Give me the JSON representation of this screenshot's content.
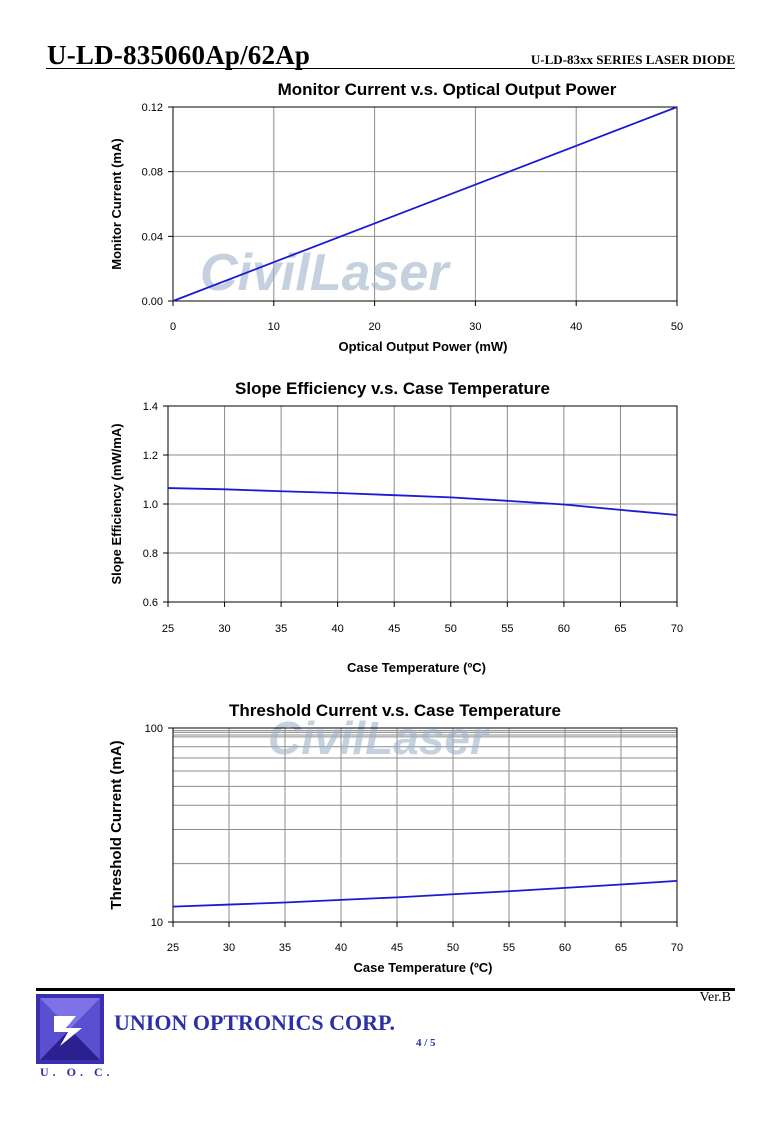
{
  "header": {
    "title": "U-LD-835060Ap/62Ap",
    "series": "U-LD-83xx SERIES LASER DIODE"
  },
  "watermark": "CivilLaser",
  "footer": {
    "version": "Ver.B",
    "company": "UNION OPTRONICS CORP.",
    "page": "4 / 5",
    "logo_text": "U. O. C.",
    "brand_color": "#2b2fa8"
  },
  "chart_data": [
    {
      "type": "line",
      "title": "Monitor Current v.s. Optical Output Power",
      "xlabel": "Optical Output Power (mW)",
      "ylabel": "Monitor Current (mA)",
      "xlim": [
        0,
        50
      ],
      "ylim": [
        0,
        0.12
      ],
      "xticks": [
        "0",
        "10",
        "20",
        "30",
        "40",
        "50"
      ],
      "yticks": [
        "0.00",
        "0.04",
        "0.08",
        "0.12"
      ],
      "grid": true,
      "line_color": "#1a1ad6",
      "x": [
        0,
        50
      ],
      "y": [
        0,
        0.12
      ]
    },
    {
      "type": "line",
      "title": "Slope Efficiency v.s. Case Temperature",
      "xlabel": "Case Temperature (ºC)",
      "ylabel": "Slope Efficiency (mW/mA)",
      "xlim": [
        25,
        70
      ],
      "ylim": [
        0.6,
        1.4
      ],
      "xticks": [
        "25",
        "30",
        "35",
        "40",
        "45",
        "50",
        "55",
        "60",
        "65",
        "70"
      ],
      "yticks": [
        "0.6",
        "0.8",
        "1.0",
        "1.2",
        "1.4"
      ],
      "grid": true,
      "line_color": "#1a1ad6",
      "x": [
        25,
        30,
        35,
        40,
        45,
        50,
        55,
        60,
        65,
        70
      ],
      "y": [
        1.065,
        1.06,
        1.052,
        1.045,
        1.036,
        1.027,
        1.013,
        0.998,
        0.976,
        0.955
      ]
    },
    {
      "type": "line",
      "title": "Threshold Current v.s. Case Temperature",
      "xlabel": "Case Temperature (ºC)",
      "ylabel": "Threshold Current (mA)",
      "xlim": [
        25,
        70
      ],
      "ylim": [
        10,
        100
      ],
      "yscale": "log",
      "xticks": [
        "25",
        "30",
        "35",
        "40",
        "45",
        "50",
        "55",
        "60",
        "65",
        "70"
      ],
      "yticks": [
        "10",
        "100"
      ],
      "grid": true,
      "line_color": "#1a1ad6",
      "x": [
        25,
        30,
        35,
        40,
        45,
        50,
        55,
        60,
        65,
        70
      ],
      "y": [
        12.0,
        12.3,
        12.6,
        13.0,
        13.4,
        13.9,
        14.4,
        15.0,
        15.6,
        16.3
      ]
    }
  ]
}
